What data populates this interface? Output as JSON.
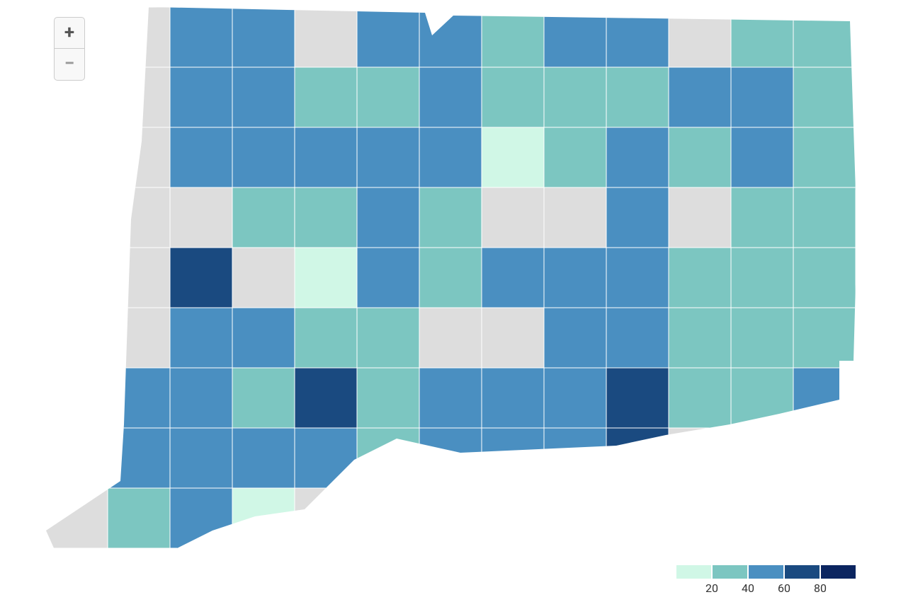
{
  "zoom": {
    "in": "+",
    "out": "−"
  },
  "legend": {
    "thresholds": [
      20,
      40,
      60,
      80
    ],
    "colors": [
      "#d0f7e6",
      "#7cc6c1",
      "#4a8fc1",
      "#1a4a80",
      "#0b2560"
    ],
    "no_data_color": "#dddddd"
  },
  "regions": [
    [
      null,
      null,
      50,
      50,
      null,
      48,
      50,
      32,
      50,
      50,
      null,
      30,
      32
    ],
    [
      null,
      null,
      50,
      50,
      30,
      30,
      50,
      30,
      30,
      33,
      50,
      52,
      35
    ],
    [
      null,
      null,
      52,
      50,
      50,
      48,
      50,
      15,
      35,
      50,
      30,
      48,
      34
    ],
    [
      null,
      null,
      null,
      35,
      30,
      45,
      30,
      null,
      null,
      50,
      null,
      32,
      30
    ],
    [
      null,
      null,
      75,
      null,
      15,
      50,
      30,
      50,
      50,
      50,
      30,
      32,
      35
    ],
    [
      null,
      null,
      50,
      50,
      30,
      30,
      null,
      null,
      50,
      52,
      32,
      30,
      35
    ],
    [
      null,
      50,
      48,
      35,
      75,
      30,
      50,
      50,
      50,
      78,
      35,
      30,
      50
    ],
    [
      null,
      50,
      50,
      50,
      45,
      35,
      50,
      48,
      50,
      78,
      null,
      null,
      null
    ],
    [
      null,
      35,
      50,
      15,
      null,
      null,
      null,
      null,
      null,
      null,
      null,
      null,
      null
    ]
  ]
}
